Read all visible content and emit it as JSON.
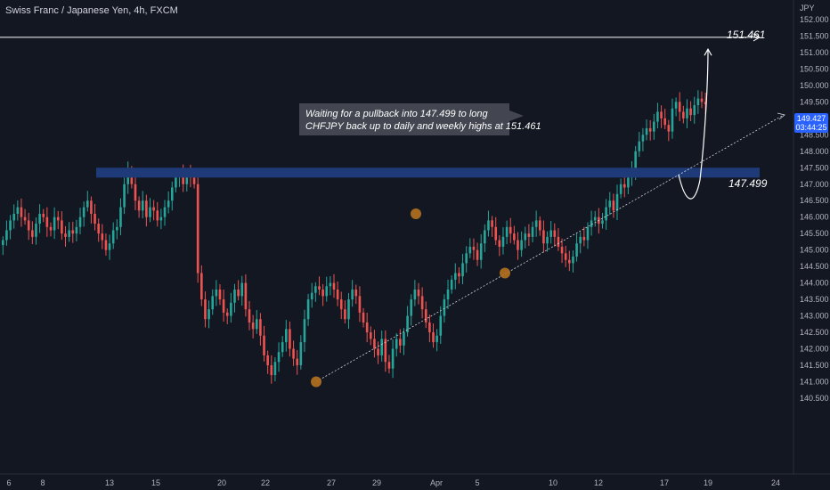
{
  "header": {
    "title": "Swiss Franc / Japanese Yen, 4h, FXCM"
  },
  "axis": {
    "currency": "JPY",
    "price_ticks": [
      "152.000",
      "151.500",
      "151.000",
      "150.500",
      "150.000",
      "149.500",
      "149.000",
      "148.500",
      "148.000",
      "147.500",
      "147.000",
      "146.500",
      "146.000",
      "145.500",
      "145.000",
      "144.500",
      "144.000",
      "143.500",
      "143.000",
      "142.500",
      "142.000",
      "141.500",
      "141.000",
      "140.500"
    ],
    "date_ticks": [
      "6",
      "8",
      "13",
      "15",
      "20",
      "22",
      "27",
      "29",
      "Apr",
      "5",
      "10",
      "12",
      "17",
      "19",
      "24"
    ]
  },
  "price_tag": {
    "price": "149.427",
    "countdown": "03:44:25"
  },
  "annotation": {
    "line1": "Waiting for a pullback into 147.499 to long",
    "line2": "CHFJPY back up to daily and weekly highs at 151.461"
  },
  "levels": {
    "target": "151.461",
    "support": "147.499"
  },
  "colors": {
    "background": "#131722",
    "bull": "#26a69a",
    "bear": "#ef5350",
    "zone": "#1e3a78",
    "pivot": "#b5711f",
    "price_tag": "#2962ff"
  },
  "chart_data": {
    "type": "candlestick",
    "symbol": "CHFJPY",
    "timeframe": "4h",
    "ylim": [
      140.2,
      152.3
    ],
    "support_zone": [
      147.2,
      147.5
    ],
    "target_level": 151.461,
    "support_level": 147.499,
    "close": [
      145.3,
      145.6,
      145.9,
      146.1,
      146.3,
      146.0,
      145.9,
      145.6,
      145.4,
      145.8,
      146.1,
      146.0,
      145.7,
      145.6,
      146.0,
      145.9,
      145.5,
      145.4,
      145.6,
      145.5,
      145.7,
      146.0,
      146.3,
      146.5,
      146.1,
      145.8,
      145.5,
      145.3,
      145.0,
      145.2,
      145.6,
      145.7,
      146.3,
      147.0,
      147.4,
      147.0,
      146.5,
      146.2,
      146.5,
      146.0,
      146.3,
      146.2,
      145.9,
      146.0,
      146.3,
      146.5,
      146.9,
      147.2,
      147.3,
      147.0,
      147.3,
      147.2,
      147.0,
      144.3,
      143.5,
      142.9,
      143.2,
      143.6,
      143.8,
      143.5,
      143.1,
      143.0,
      143.4,
      143.8,
      143.6,
      144.0,
      143.2,
      142.8,
      142.6,
      142.9,
      142.4,
      141.8,
      141.5,
      141.2,
      141.6,
      141.9,
      142.2,
      142.6,
      142.0,
      141.7,
      141.5,
      142.2,
      142.9,
      143.5,
      143.7,
      143.9,
      143.8,
      143.6,
      143.9,
      144.0,
      143.8,
      143.5,
      143.2,
      142.9,
      143.5,
      143.8,
      143.6,
      143.1,
      142.8,
      142.5,
      142.3,
      142.0,
      141.8,
      142.3,
      141.6,
      141.4,
      142.0,
      142.3,
      142.1,
      142.5,
      143.0,
      143.5,
      143.8,
      143.6,
      143.2,
      142.8,
      142.5,
      142.2,
      142.4,
      143.0,
      143.5,
      143.8,
      144.1,
      144.3,
      144.2,
      144.6,
      144.9,
      145.1,
      145.0,
      144.7,
      145.2,
      145.6,
      145.9,
      145.7,
      145.3,
      145.1,
      145.4,
      145.7,
      145.5,
      145.3,
      145.0,
      145.3,
      145.5,
      145.4,
      145.7,
      145.9,
      145.6,
      145.2,
      145.4,
      145.6,
      145.4,
      145.1,
      144.9,
      144.7,
      144.6,
      144.8,
      145.2,
      145.4,
      145.3,
      145.7,
      145.9,
      146.0,
      145.8,
      145.9,
      146.3,
      146.5,
      146.2,
      146.7,
      147.0,
      146.9,
      147.2,
      147.4,
      148.0,
      148.3,
      148.5,
      148.7,
      148.6,
      148.9,
      149.2,
      149.0,
      148.8,
      148.6,
      149.3,
      149.5,
      149.2,
      149.0,
      149.3,
      149.1,
      149.4,
      149.6,
      149.5,
      149.427
    ],
    "pivots": [
      {
        "label": "Mar 25",
        "price": 141.0
      },
      {
        "label": "Mar 30",
        "price": 146.1
      },
      {
        "label": "Apr 6",
        "price": 144.3
      }
    ],
    "trendline": [
      {
        "label": "Mar 25",
        "price": 141.0
      },
      {
        "label": "Apr 6",
        "price": 144.3
      }
    ],
    "projection": [
      {
        "label": "Apr 17",
        "price": 147.8
      },
      {
        "label": "Apr 18",
        "price": 147.3
      },
      {
        "label": "Apr 19",
        "price": 148.2
      },
      {
        "label": "Apr 20",
        "price": 151.3
      }
    ]
  }
}
